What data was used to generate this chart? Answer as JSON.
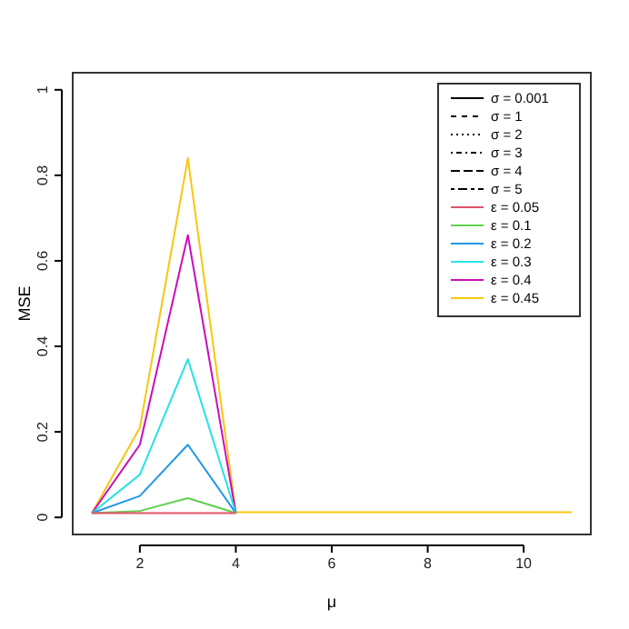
{
  "chart_data": {
    "type": "line",
    "xlabel": "μ",
    "ylabel": "MSE",
    "x": [
      1,
      2,
      3,
      4,
      5,
      6,
      7,
      8,
      9,
      10,
      11
    ],
    "xlim": [
      0.6,
      11.4
    ],
    "xticks": [
      2,
      4,
      6,
      8,
      10
    ],
    "ylim": [
      -0.04,
      1.04
    ],
    "yticks": [
      0.0,
      0.2,
      0.4,
      0.6,
      0.8,
      1.0
    ],
    "grid": false,
    "legend": "top right",
    "marker": "none",
    "series": [
      {
        "name": "σ = 0.001",
        "color": "#000000",
        "line_style": "solid",
        "values": [
          null,
          null,
          null,
          null,
          null,
          null,
          null,
          null,
          null,
          null,
          null
        ]
      },
      {
        "name": "σ = 1",
        "color": "#000000",
        "line_style": "dashed",
        "values": [
          null,
          null,
          null,
          null,
          null,
          null,
          null,
          null,
          null,
          null,
          null
        ]
      },
      {
        "name": "σ = 2",
        "color": "#000000",
        "line_style": "dotted",
        "values": [
          null,
          null,
          null,
          null,
          null,
          null,
          null,
          null,
          null,
          null,
          null
        ]
      },
      {
        "name": "σ = 3",
        "color": "#000000",
        "line_style": "dotdash",
        "values": [
          null,
          null,
          null,
          null,
          null,
          null,
          null,
          null,
          null,
          null,
          null
        ]
      },
      {
        "name": "σ = 4",
        "color": "#000000",
        "line_style": "longdash",
        "values": [
          null,
          null,
          null,
          null,
          null,
          null,
          null,
          null,
          null,
          null,
          null
        ]
      },
      {
        "name": "σ = 5",
        "color": "#000000",
        "line_style": "twodash",
        "values": [
          null,
          null,
          null,
          null,
          null,
          null,
          null,
          null,
          null,
          null,
          null
        ]
      },
      {
        "name": "ε = 0.05",
        "color": "#df536b",
        "line_style": "solid",
        "values": [
          0.01,
          0.01,
          0.01,
          0.01,
          null,
          null,
          null,
          null,
          null,
          null,
          null
        ]
      },
      {
        "name": "ε = 0.1",
        "color": "#61d04f",
        "line_style": "solid",
        "values": [
          0.01,
          0.015,
          0.045,
          0.01,
          null,
          null,
          null,
          null,
          null,
          null,
          null
        ]
      },
      {
        "name": "ε = 0.2",
        "color": "#2297e6",
        "line_style": "solid",
        "values": [
          0.01,
          0.05,
          0.17,
          0.01,
          null,
          null,
          null,
          null,
          null,
          null,
          null
        ]
      },
      {
        "name": "ε = 0.3",
        "color": "#28e2e5",
        "line_style": "solid",
        "values": [
          0.01,
          0.1,
          0.37,
          0.01,
          null,
          null,
          null,
          null,
          null,
          null,
          null
        ]
      },
      {
        "name": "ε = 0.4",
        "color": "#cd0bbc",
        "line_style": "solid",
        "values": [
          0.01,
          0.17,
          0.66,
          0.01,
          null,
          null,
          null,
          null,
          null,
          null,
          null
        ]
      },
      {
        "name": "ε = 0.45",
        "color": "#f5c710",
        "line_style": "solid",
        "values": [
          0.01,
          0.21,
          0.84,
          0.012,
          0.012,
          0.012,
          0.012,
          0.012,
          0.012,
          0.012,
          0.012
        ]
      }
    ]
  }
}
